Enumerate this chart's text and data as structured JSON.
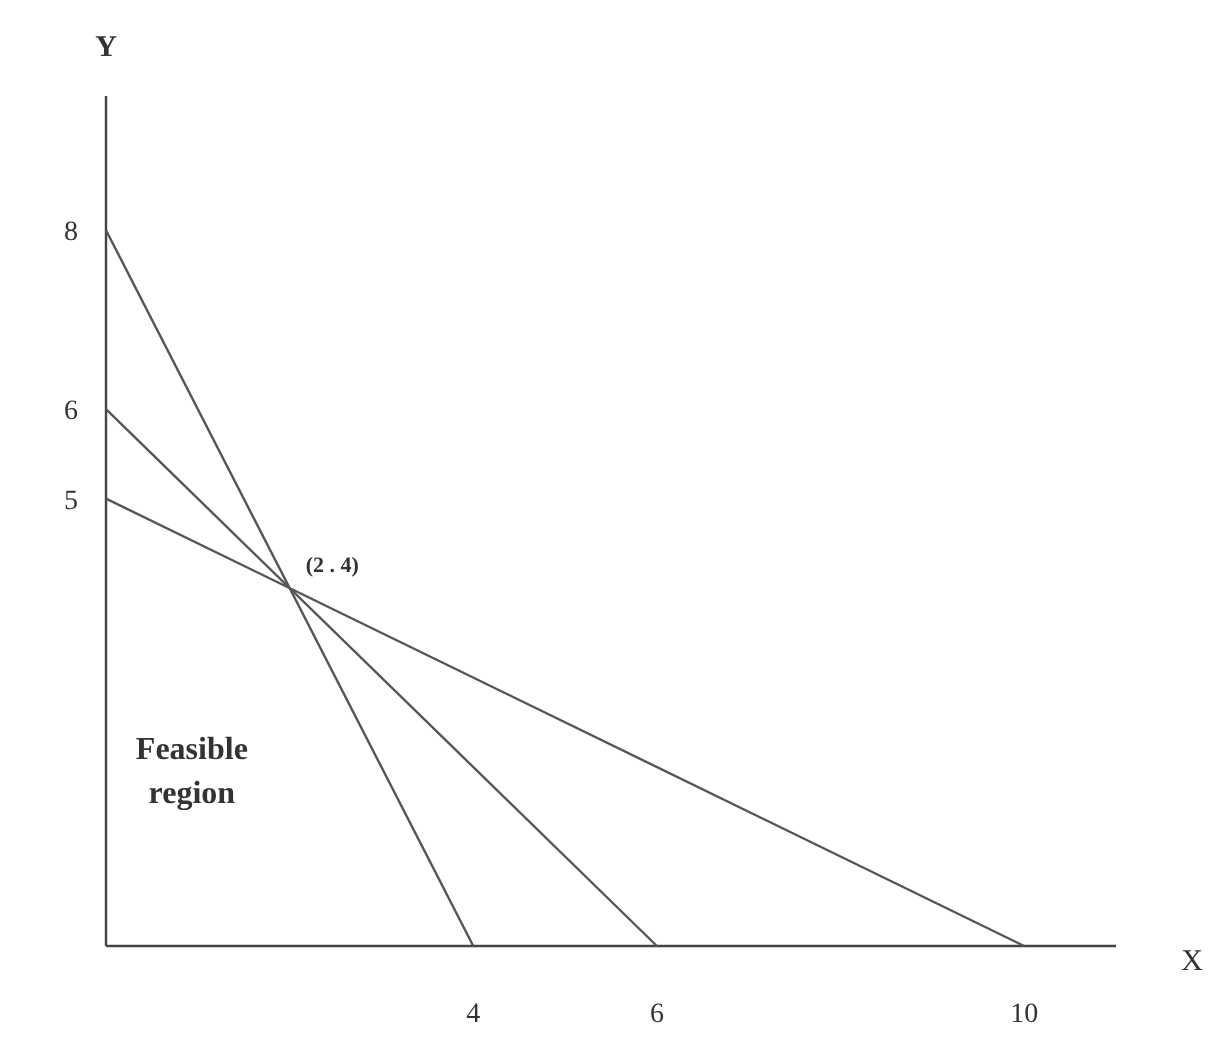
{
  "chart_data": {
    "type": "line",
    "xlabel": "X",
    "ylabel": "Y",
    "xlim": [
      0,
      11
    ],
    "ylim": [
      0,
      9.5
    ],
    "xticks": [
      4,
      6,
      10
    ],
    "yticks": [
      5,
      6,
      8
    ],
    "grid": false,
    "marker": "none",
    "line_style": "solid",
    "series": [
      {
        "color": "#555555",
        "x": [
          0,
          4
        ],
        "values": [
          8,
          0
        ]
      },
      {
        "color": "#555555",
        "x": [
          0,
          6
        ],
        "values": [
          6,
          0
        ]
      },
      {
        "color": "#555555",
        "x": [
          0,
          10
        ],
        "values": [
          5,
          0
        ]
      }
    ],
    "annotations": [
      {
        "text": "(2 . 4)",
        "x": 2,
        "y": 4
      },
      "Feasible region"
    ]
  }
}
